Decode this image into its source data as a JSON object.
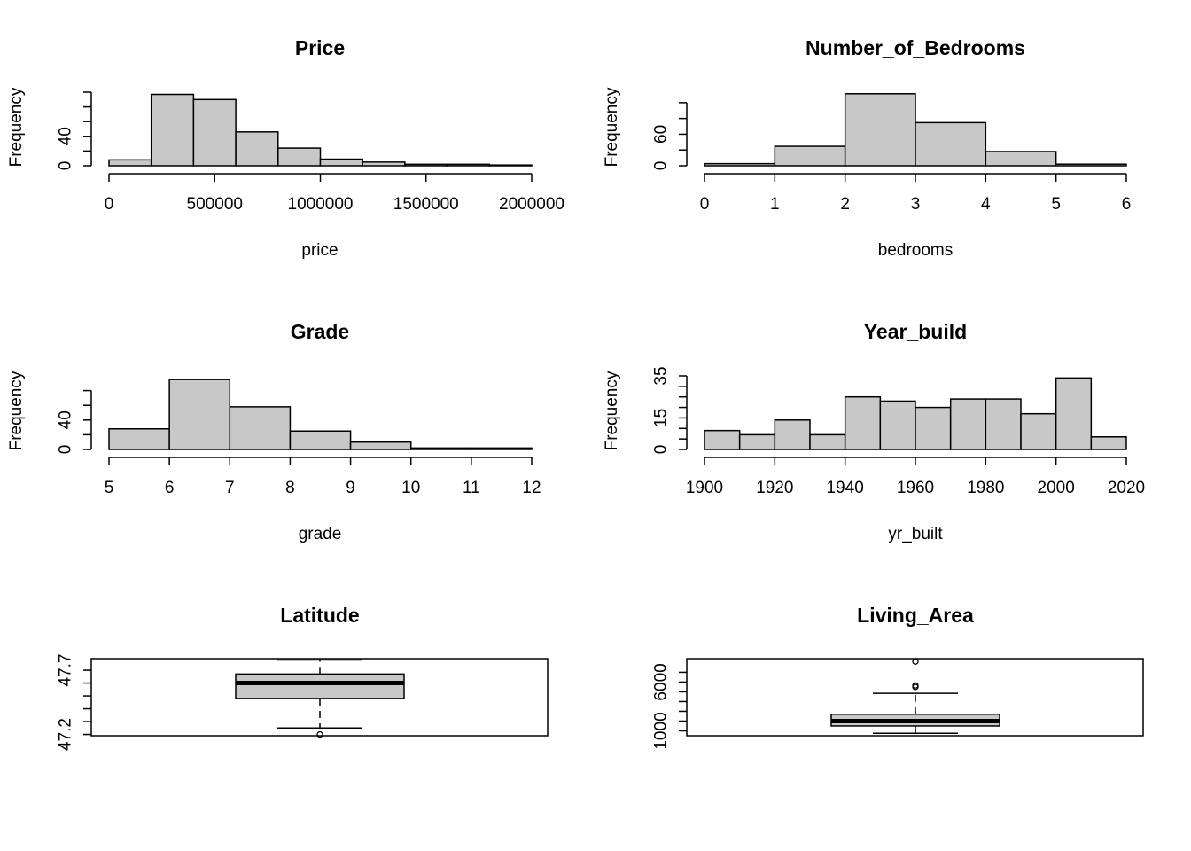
{
  "figure": {
    "background": "#ffffff",
    "bar_fill": "#c8c8c8",
    "stroke": "#000000"
  },
  "chart_data": [
    {
      "type": "histogram",
      "title": "Price",
      "xlabel": "price",
      "ylabel": "Frequency",
      "bin_edges": [
        0,
        200000,
        400000,
        600000,
        800000,
        1000000,
        1200000,
        1400000,
        1600000,
        1800000,
        2000000
      ],
      "values": [
        8,
        97,
        90,
        46,
        24,
        9,
        5,
        2,
        2,
        1
      ],
      "xlim": [
        0,
        2000000
      ],
      "ylim": [
        0,
        100
      ],
      "xticks": [
        0,
        500000,
        1000000,
        1500000,
        2000000
      ],
      "xtick_labels": [
        "0",
        "500000",
        "1000000",
        "1500000",
        "2000000"
      ],
      "yticks": [
        0,
        20,
        40,
        60,
        80,
        100
      ],
      "ytick_labels": [
        "0",
        "",
        "40",
        "",
        "",
        ""
      ]
    },
    {
      "type": "histogram",
      "title": "Number_of_Bedrooms",
      "xlabel": "bedrooms",
      "ylabel": "Frequency",
      "bin_edges": [
        0,
        1,
        2,
        3,
        4,
        5,
        6
      ],
      "values": [
        4,
        37,
        137,
        82,
        27,
        3
      ],
      "xlim": [
        0,
        6
      ],
      "ylim": [
        0,
        140
      ],
      "xticks": [
        0,
        1,
        2,
        3,
        4,
        5,
        6
      ],
      "xtick_labels": [
        "0",
        "1",
        "2",
        "3",
        "4",
        "5",
        "6"
      ],
      "yticks": [
        0,
        30,
        60,
        90,
        120
      ],
      "ytick_labels": [
        "0",
        "",
        "60",
        "",
        ""
      ]
    },
    {
      "type": "histogram",
      "title": "Grade",
      "xlabel": "grade",
      "ylabel": "Frequency",
      "bin_edges": [
        5,
        6,
        7,
        8,
        9,
        10,
        11,
        12
      ],
      "values": [
        28,
        95,
        58,
        25,
        10,
        2,
        2
      ],
      "xlim": [
        5,
        12
      ],
      "ylim": [
        0,
        100
      ],
      "xticks": [
        5,
        6,
        7,
        8,
        9,
        10,
        11,
        12
      ],
      "xtick_labels": [
        "5",
        "6",
        "7",
        "8",
        "9",
        "10",
        "11",
        "12"
      ],
      "yticks": [
        0,
        20,
        40,
        60,
        80
      ],
      "ytick_labels": [
        "0",
        "",
        "40",
        "",
        ""
      ]
    },
    {
      "type": "histogram",
      "title": "Year_build",
      "xlabel": "yr_built",
      "ylabel": "Frequency",
      "bin_edges": [
        1900,
        1910,
        1920,
        1930,
        1940,
        1950,
        1960,
        1970,
        1980,
        1990,
        2000,
        2010,
        2020
      ],
      "values": [
        9,
        7,
        14,
        7,
        25,
        23,
        20,
        24,
        24,
        17,
        34,
        6
      ],
      "xlim": [
        1900,
        2020
      ],
      "ylim": [
        0,
        35
      ],
      "xticks": [
        1900,
        1920,
        1940,
        1960,
        1980,
        2000,
        2020
      ],
      "xtick_labels": [
        "1900",
        "1920",
        "1940",
        "1960",
        "1980",
        "2000",
        "2020"
      ],
      "yticks": [
        0,
        5,
        10,
        15,
        20,
        25,
        30,
        35
      ],
      "ytick_labels": [
        "0",
        "",
        "",
        "15",
        "",
        "",
        "",
        "35"
      ]
    },
    {
      "type": "boxplot",
      "title": "Latitude",
      "ylim": [
        47.19,
        47.79
      ],
      "yticks": [
        47.2,
        47.3,
        47.4,
        47.5,
        47.6,
        47.7
      ],
      "ytick_labels": [
        "47.2",
        "",
        "",
        "",
        "",
        "47.7"
      ],
      "whisker_low": 47.25,
      "q1": 47.48,
      "median": 47.6,
      "q3": 47.67,
      "whisker_high": 47.78,
      "outliers": [
        47.2
      ]
    },
    {
      "type": "boxplot",
      "title": "Living_Area",
      "ylim": [
        500,
        8400
      ],
      "yticks": [
        1000,
        2000,
        3000,
        4000,
        5000,
        6000,
        7000
      ],
      "ytick_labels": [
        "1000",
        "",
        "",
        "",
        "",
        "6000",
        ""
      ],
      "whisker_low": 750,
      "q1": 1500,
      "median": 2000,
      "q3": 2700,
      "whisker_high": 4850,
      "outliers": [
        5500,
        5650,
        8100
      ]
    }
  ]
}
